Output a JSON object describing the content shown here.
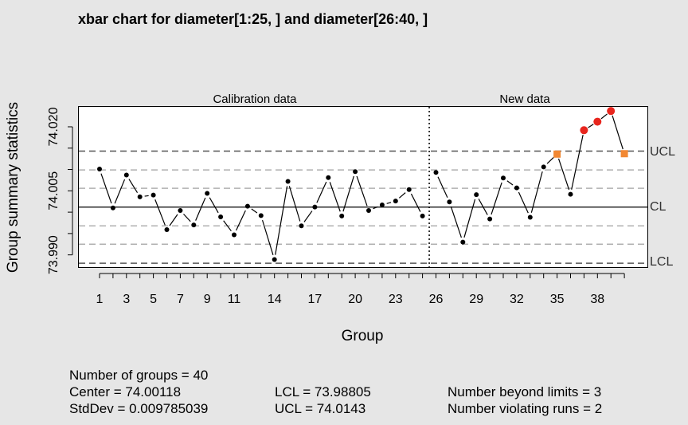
{
  "title": "xbar chart for diameter[1:25, ] and diameter[26:40, ]",
  "chart_data": {
    "type": "line",
    "title": "xbar chart for diameter[1:25, ] and diameter[26:40, ]",
    "xlabel": "Group",
    "ylabel": "Group summary statistics",
    "x_tick_labels": [
      "1",
      "3",
      "5",
      "7",
      "9",
      "11",
      "14",
      "17",
      "20",
      "23",
      "26",
      "29",
      "32",
      "35",
      "38"
    ],
    "y_tick_labels": [
      "73.990",
      "74.005",
      "74.020"
    ],
    "ylim": [
      73.9875,
      74.0225
    ],
    "regions": [
      {
        "label": "Calibration data",
        "groups": [
          1,
          25
        ]
      },
      {
        "label": "New data",
        "groups": [
          26,
          40
        ]
      }
    ],
    "limits": {
      "CL": 74.00118,
      "UCL": 74.0143,
      "LCL": 73.98805
    },
    "limit_labels": [
      "UCL",
      "CL",
      "LCL"
    ],
    "sigma_lines": [
      74.0099,
      74.0056,
      73.9968,
      73.9925
    ],
    "groups": [
      1,
      2,
      3,
      4,
      5,
      6,
      7,
      8,
      9,
      10,
      11,
      12,
      13,
      14,
      15,
      16,
      17,
      18,
      19,
      20,
      21,
      22,
      23,
      24,
      25,
      26,
      27,
      28,
      29,
      30,
      31,
      32,
      33,
      34,
      35,
      36,
      37,
      38,
      39,
      40
    ],
    "values": [
      74.0101,
      74.001,
      74.0087,
      74.0036,
      74.004,
      73.9959,
      74.0004,
      73.997,
      74.0044,
      73.9989,
      73.9947,
      74.0014,
      73.9992,
      73.9889,
      74.0072,
      73.9968,
      74.0012,
      74.0081,
      73.9991,
      74.0095,
      74.0004,
      74.0017,
      74.0026,
      74.0053,
      73.9991,
      74.0093,
      74.0024,
      73.993,
      74.0041,
      73.9984,
      74.008,
      74.0057,
      73.9988,
      74.0106,
      74.0136,
      74.0042,
      74.0192,
      74.0212,
      74.0237,
      74.0137
    ],
    "beyond_limits": [
      37,
      38,
      39
    ],
    "violating_runs": [
      35,
      40
    ],
    "colors": {
      "point": "#000000",
      "beyond": "#e8261e",
      "violating": "#f28833",
      "sigma_line": "#b0b0b0",
      "limit_line": "#555555"
    }
  },
  "stats": {
    "groups": "Number of groups = 40",
    "center": "Center = 74.00118",
    "stddev": "StdDev = 0.009785039",
    "lcl": "LCL = 73.98805",
    "ucl": "UCL = 74.0143",
    "beyond": "Number beyond limits = 3",
    "violating": "Number violating runs = 2"
  }
}
